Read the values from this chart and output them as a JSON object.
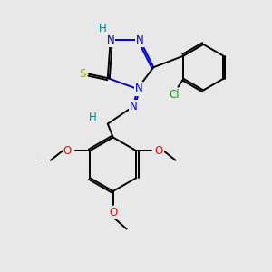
{
  "bg_color": "#e8e8e8",
  "atom_colors": {
    "N": "#0000cc",
    "S": "#aaaa00",
    "Cl": "#00aa00",
    "H": "#008888",
    "O": "#ff0000",
    "C": "#000000"
  },
  "lw": 1.4
}
